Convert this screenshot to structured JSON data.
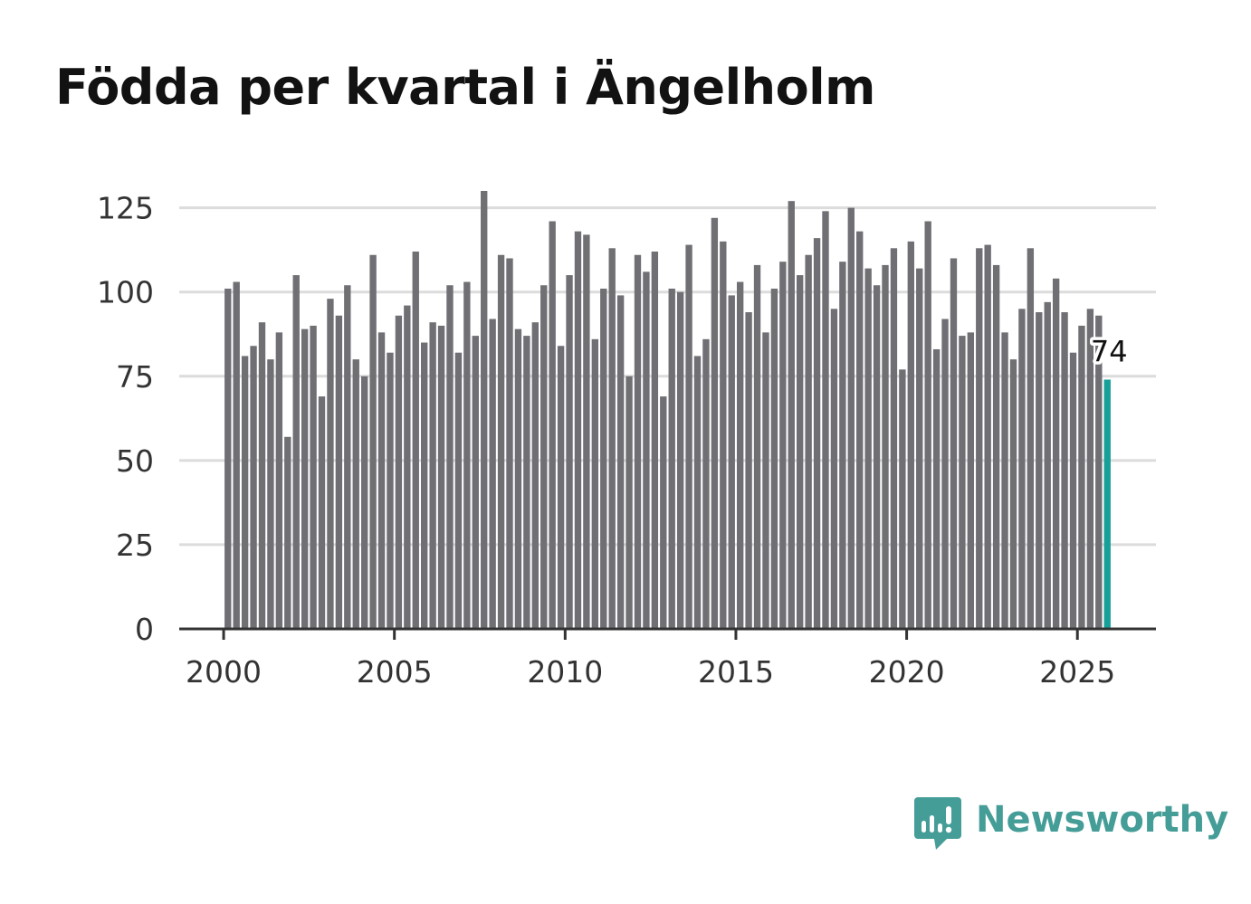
{
  "colors": {
    "bar": "#6f6f74",
    "highlight": "#16a099",
    "grid": "#dcdcdc",
    "axis": "#333333",
    "brand": "#459d98"
  },
  "brand": {
    "name": "Newsworthy",
    "icon": "newsworthy-chart-bubble-icon"
  },
  "chart_data": {
    "type": "bar",
    "title": "Födda per kvartal i Ängelholm",
    "xlabel": "",
    "ylabel": "",
    "ylim": [
      0,
      130
    ],
    "yticks": [
      0,
      25,
      50,
      75,
      100,
      125
    ],
    "xticks": [
      2000,
      2005,
      2010,
      2015,
      2020,
      2025
    ],
    "xlim": [
      1998.7,
      2027.3
    ],
    "start_year": 2000,
    "grid": true,
    "annotation": {
      "label": "74",
      "index": 103
    },
    "series": [
      {
        "name": "Födda",
        "values": [
          101,
          103,
          81,
          84,
          91,
          80,
          88,
          57,
          105,
          89,
          90,
          69,
          98,
          93,
          102,
          80,
          75,
          111,
          88,
          82,
          93,
          96,
          112,
          85,
          91,
          90,
          102,
          82,
          103,
          87,
          130,
          92,
          111,
          110,
          89,
          87,
          91,
          102,
          121,
          84,
          105,
          118,
          117,
          86,
          101,
          113,
          99,
          75,
          111,
          106,
          112,
          69,
          101,
          100,
          114,
          81,
          86,
          122,
          115,
          99,
          103,
          94,
          108,
          88,
          101,
          109,
          127,
          105,
          111,
          116,
          124,
          95,
          109,
          125,
          118,
          107,
          102,
          108,
          113,
          77,
          115,
          107,
          121,
          83,
          92,
          110,
          87,
          88,
          113,
          114,
          108,
          88,
          80,
          95,
          113,
          94,
          97,
          104,
          94,
          82,
          90,
          95,
          93,
          74
        ]
      }
    ]
  }
}
